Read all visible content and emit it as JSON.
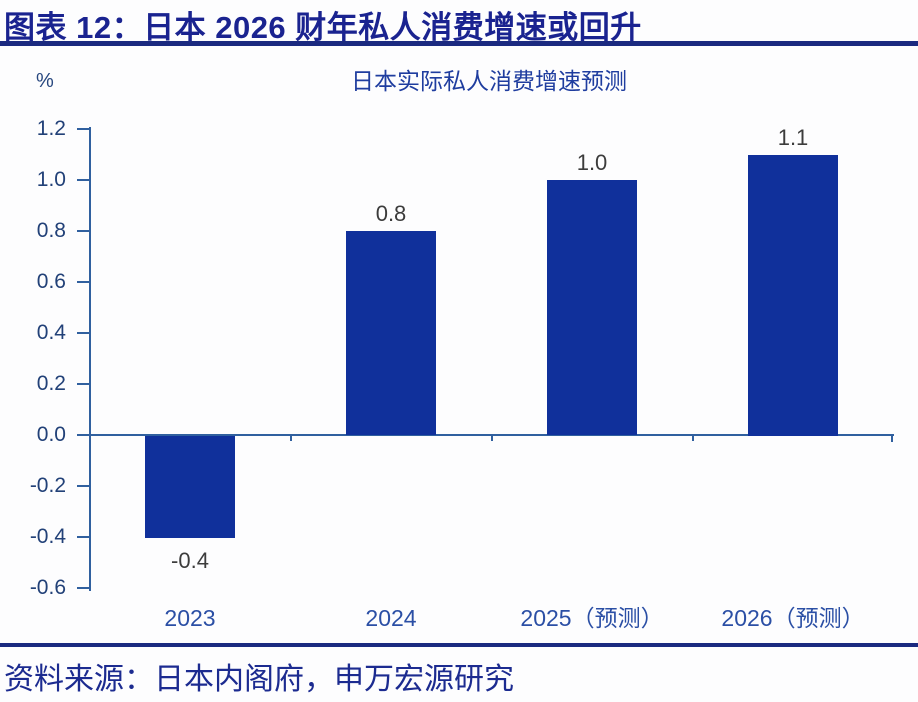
{
  "header": {
    "title": "图表 12：日本 2026 财年私人消费增速或回升"
  },
  "chart": {
    "title": "日本实际私人消费增速预测",
    "unit_label": "%"
  },
  "chart_data": {
    "type": "bar",
    "title": "日本实际私人消费增速预测",
    "categories": [
      "2023",
      "2024",
      "2025（预测）",
      "2026（预测）"
    ],
    "values": [
      -0.4,
      0.8,
      1.0,
      1.1
    ],
    "value_labels": [
      "-0.4",
      "0.8",
      "1.0",
      "1.1"
    ],
    "xlabel": "",
    "ylabel": "%",
    "ylim": [
      -0.6,
      1.2
    ],
    "ytick_step": 0.2,
    "yticks": [
      "1.2",
      "1.0",
      "0.8",
      "0.6",
      "0.4",
      "0.2",
      "0.0",
      "-0.2",
      "-0.4",
      "-0.6"
    ],
    "grid": false,
    "legend": null,
    "bar_color": "#10309b"
  },
  "footer": {
    "source": "资料来源：日本内阁府，申万宏源研究"
  },
  "colors": {
    "bar": "#10309b",
    "header_text": "#1a2390",
    "header_rule": "#1b2a80",
    "axis_line": "#30609f",
    "y_tick_text": "#224178",
    "x_tick_text": "#2b4fa5",
    "value_label_text": "#3c3c3c",
    "source_text": "#1c2b90",
    "background": "#fdfdfe"
  }
}
